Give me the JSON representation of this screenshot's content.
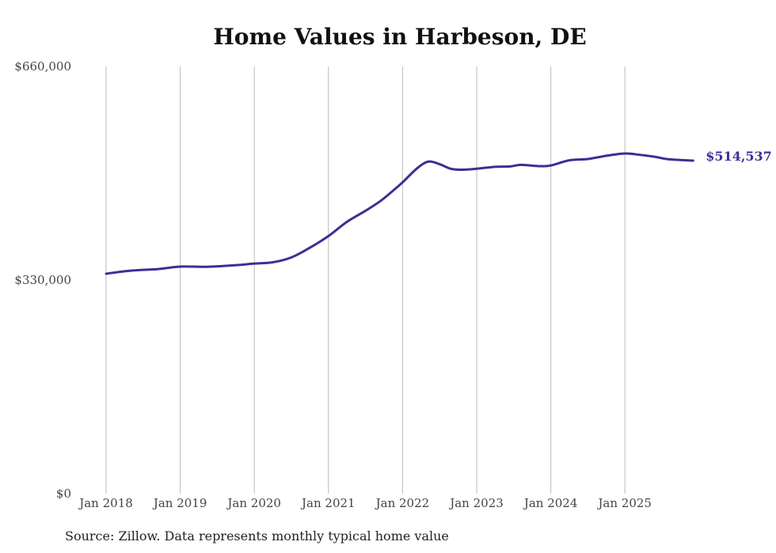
{
  "chart_data": {
    "type": "line",
    "title": "Home Values in Harbeson, DE",
    "xlabel": "",
    "ylabel": "",
    "ylim": [
      0,
      660000
    ],
    "xlim": [
      2018,
      2025.92
    ],
    "y_ticks": [
      0,
      330000,
      660000
    ],
    "y_tick_labels": [
      "$0",
      "$330,000",
      "$660,000"
    ],
    "x_ticks": [
      2018,
      2019,
      2020,
      2021,
      2022,
      2023,
      2024,
      2025
    ],
    "x_tick_labels": [
      "Jan 2018",
      "Jan 2019",
      "Jan 2020",
      "Jan 2021",
      "Jan 2022",
      "Jan 2023",
      "Jan 2024",
      "Jan 2025"
    ],
    "grid": "vertical",
    "color": "#3a2f97",
    "series": [
      {
        "name": "Typical home value",
        "x": [
          2018.0,
          2018.33,
          2018.7,
          2019.0,
          2019.35,
          2019.75,
          2020.0,
          2020.25,
          2020.5,
          2020.75,
          2021.0,
          2021.25,
          2021.5,
          2021.7,
          2021.87,
          2022.0,
          2022.2,
          2022.35,
          2022.5,
          2022.65,
          2022.8,
          2023.0,
          2023.25,
          2023.45,
          2023.6,
          2023.85,
          2024.0,
          2024.25,
          2024.5,
          2024.75,
          2025.0,
          2025.2,
          2025.4,
          2025.6,
          2025.92
        ],
        "values": [
          339800,
          344500,
          347000,
          350800,
          350500,
          353000,
          355500,
          357500,
          365000,
          380000,
          398000,
          420000,
          437000,
          452000,
          468000,
          481000,
          503000,
          513000,
          509000,
          502000,
          500500,
          502000,
          505000,
          505500,
          508000,
          506000,
          507000,
          515000,
          517000,
          522000,
          525500,
          523500,
          520500,
          516500,
          514537
        ]
      }
    ],
    "end_label": "$514,537"
  },
  "source": "Source: Zillow. Data represents monthly typical home value"
}
